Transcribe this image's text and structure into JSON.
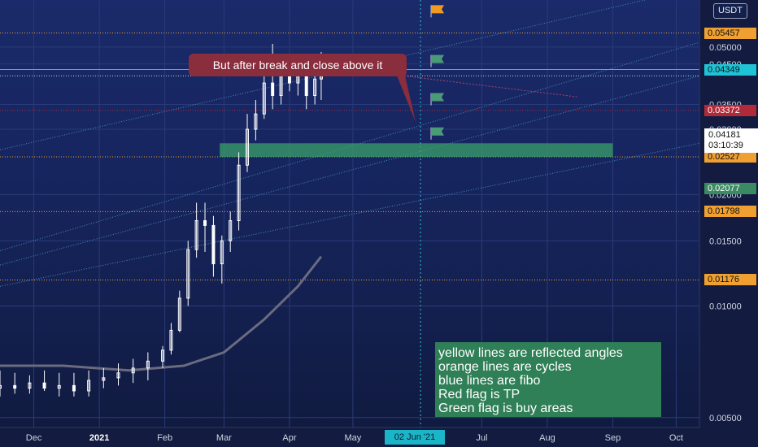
{
  "currency": "USDT",
  "callout_text": "But after break and close above it",
  "notes": [
    "yellow lines are reflected angles",
    "orange lines are cycles",
    "blue lines are fibo",
    "Red flag is TP",
    "Green flag is buy areas"
  ],
  "colors": {
    "candle_up": "#ffffff",
    "candle_down": "#ffffff",
    "moving_average": "#6b6b80",
    "fibo_line": "#4fa3c4",
    "resistance": "#b0406a",
    "buy_zone": "#3aa06a",
    "tp_flag": "#f09a20",
    "buy_flag": "#4a9a78",
    "cycle_line": "#2ec4d4"
  },
  "chart_data": {
    "type": "candlestick",
    "y_scale": "log",
    "ylim": [
      0.0047,
      0.065
    ],
    "xlim": [
      "2020-11-15",
      "2021-10-12"
    ],
    "x_ticks": [
      {
        "label": "Dec",
        "date": "2020-12-01"
      },
      {
        "label": "2021",
        "date": "2021-01-01",
        "bold": true
      },
      {
        "label": "Feb",
        "date": "2021-02-01"
      },
      {
        "label": "Mar",
        "date": "2021-03-01"
      },
      {
        "label": "Apr",
        "date": "2021-04-01"
      },
      {
        "label": "May",
        "date": "2021-05-01"
      },
      {
        "label": "Jul",
        "date": "2021-07-01"
      },
      {
        "label": "Aug",
        "date": "2021-08-01"
      },
      {
        "label": "Sep",
        "date": "2021-09-01"
      },
      {
        "label": "Oct",
        "date": "2021-10-01"
      }
    ],
    "y_ticks": [
      "0.05000",
      "0.04500",
      "0.03500",
      "0.03000",
      "0.02000",
      "0.01500",
      "0.01000",
      "0.00500"
    ],
    "price_levels": [
      {
        "value": 0.05457,
        "label": "0.05457",
        "color": "#f0a030",
        "text_color": "#111111",
        "line": "dotted"
      },
      {
        "value": 0.04349,
        "label": "0.04349",
        "color": "#1fc3d6",
        "text_color": "#111111",
        "line": "solid"
      },
      {
        "value": 0.03372,
        "label": "0.03372",
        "color": "#b02a3a",
        "text_color": "#ffffff",
        "line": "dotted"
      },
      {
        "value": 0.02527,
        "label": "0.02527",
        "color": "#f0a030",
        "text_color": "#111111",
        "line": "dotted"
      },
      {
        "value": 0.02077,
        "label": "0.02077",
        "color": "#3a8a62",
        "text_color": "#ffffff",
        "line": "none"
      },
      {
        "value": 0.01798,
        "label": "0.01798",
        "color": "#f0a030",
        "text_color": "#111111",
        "line": "dotted"
      },
      {
        "value": 0.01176,
        "label": "0.01176",
        "color": "#f0a030",
        "text_color": "#111111",
        "line": "dotted"
      }
    ],
    "current_price": {
      "value": 0.04181,
      "label": "0.04181",
      "countdown": "03:10:39"
    },
    "cycle_date": {
      "date": "2021-06-02",
      "label": "02 Jun '21"
    },
    "buy_zone": {
      "date_start": "2021-02-27",
      "date_end": "2021-09-01",
      "low": 0.02527,
      "high": 0.0275
    },
    "moving_average": [
      {
        "date": "2020-11-15",
        "value": 0.0069
      },
      {
        "date": "2020-12-15",
        "value": 0.0069
      },
      {
        "date": "2021-01-15",
        "value": 0.0067
      },
      {
        "date": "2021-02-10",
        "value": 0.0069
      },
      {
        "date": "2021-03-01",
        "value": 0.0075
      },
      {
        "date": "2021-03-20",
        "value": 0.0092
      },
      {
        "date": "2021-04-05",
        "value": 0.0113
      },
      {
        "date": "2021-04-16",
        "value": 0.0136
      }
    ],
    "fibo_lines": [
      {
        "from": {
          "date": "2020-11-15",
          "value": 0.0264
        },
        "to": {
          "date": "2021-10-12",
          "value": 0.0725
        }
      },
      {
        "from": {
          "date": "2020-11-15",
          "value": 0.0141
        },
        "to": {
          "date": "2021-10-12",
          "value": 0.0515
        }
      },
      {
        "from": {
          "date": "2020-11-15",
          "value": 0.0129
        },
        "to": {
          "date": "2021-10-12",
          "value": 0.0418
        }
      },
      {
        "from": {
          "date": "2020-11-15",
          "value": 0.0113
        },
        "to": {
          "date": "2021-10-12",
          "value": 0.0275
        }
      }
    ],
    "resistance_line": {
      "from": {
        "date": "2021-03-10",
        "value": 0.0472
      },
      "to": {
        "date": "2021-08-15",
        "value": 0.0367
      }
    },
    "flags": [
      {
        "date": "2021-06-07",
        "value": 0.062,
        "kind": "tp"
      },
      {
        "date": "2021-06-07",
        "value": 0.0455,
        "kind": "buy"
      },
      {
        "date": "2021-06-07",
        "value": 0.0359,
        "kind": "buy"
      },
      {
        "date": "2021-06-07",
        "value": 0.029,
        "kind": "buy"
      }
    ],
    "candles_sampled": [
      {
        "date": "2020-11-15",
        "open": 0.006,
        "high": 0.0067,
        "low": 0.0057,
        "close": 0.0061
      },
      {
        "date": "2020-11-22",
        "open": 0.0061,
        "high": 0.0066,
        "low": 0.0058,
        "close": 0.006
      },
      {
        "date": "2020-11-29",
        "open": 0.006,
        "high": 0.0065,
        "low": 0.0058,
        "close": 0.0062
      },
      {
        "date": "2020-12-06",
        "open": 0.0062,
        "high": 0.0067,
        "low": 0.0059,
        "close": 0.006
      },
      {
        "date": "2020-12-13",
        "open": 0.006,
        "high": 0.0066,
        "low": 0.0057,
        "close": 0.0061
      },
      {
        "date": "2020-12-20",
        "open": 0.0061,
        "high": 0.0066,
        "low": 0.0057,
        "close": 0.0059
      },
      {
        "date": "2020-12-27",
        "open": 0.0059,
        "high": 0.0067,
        "low": 0.0057,
        "close": 0.0063
      },
      {
        "date": "2021-01-03",
        "open": 0.0063,
        "high": 0.0068,
        "low": 0.006,
        "close": 0.0064
      },
      {
        "date": "2021-01-10",
        "open": 0.0064,
        "high": 0.007,
        "low": 0.0061,
        "close": 0.0066
      },
      {
        "date": "2021-01-17",
        "open": 0.0066,
        "high": 0.0072,
        "low": 0.0062,
        "close": 0.0068
      },
      {
        "date": "2021-01-24",
        "open": 0.0068,
        "high": 0.0075,
        "low": 0.0063,
        "close": 0.0071
      },
      {
        "date": "2021-01-31",
        "open": 0.0071,
        "high": 0.0078,
        "low": 0.0068,
        "close": 0.0076
      },
      {
        "date": "2021-02-04",
        "open": 0.0076,
        "high": 0.009,
        "low": 0.0074,
        "close": 0.0086
      },
      {
        "date": "2021-02-08",
        "open": 0.0086,
        "high": 0.011,
        "low": 0.0085,
        "close": 0.0105
      },
      {
        "date": "2021-02-12",
        "open": 0.0105,
        "high": 0.015,
        "low": 0.01,
        "close": 0.0142
      },
      {
        "date": "2021-02-16",
        "open": 0.0142,
        "high": 0.019,
        "low": 0.0135,
        "close": 0.017
      },
      {
        "date": "2021-02-20",
        "open": 0.017,
        "high": 0.019,
        "low": 0.014,
        "close": 0.0165
      },
      {
        "date": "2021-02-24",
        "open": 0.0165,
        "high": 0.0175,
        "low": 0.012,
        "close": 0.013
      },
      {
        "date": "2021-02-28",
        "open": 0.013,
        "high": 0.0155,
        "low": 0.0115,
        "close": 0.015
      },
      {
        "date": "2021-03-04",
        "open": 0.015,
        "high": 0.018,
        "low": 0.014,
        "close": 0.017
      },
      {
        "date": "2021-03-08",
        "open": 0.017,
        "high": 0.026,
        "low": 0.016,
        "close": 0.024
      },
      {
        "date": "2021-03-12",
        "open": 0.024,
        "high": 0.033,
        "low": 0.023,
        "close": 0.03
      },
      {
        "date": "2021-03-16",
        "open": 0.03,
        "high": 0.036,
        "low": 0.028,
        "close": 0.033
      },
      {
        "date": "2021-03-20",
        "open": 0.033,
        "high": 0.042,
        "low": 0.032,
        "close": 0.04
      },
      {
        "date": "2021-03-24",
        "open": 0.04,
        "high": 0.051,
        "low": 0.034,
        "close": 0.037
      },
      {
        "date": "2021-03-28",
        "open": 0.037,
        "high": 0.044,
        "low": 0.035,
        "close": 0.042
      },
      {
        "date": "2021-04-01",
        "open": 0.042,
        "high": 0.047,
        "low": 0.038,
        "close": 0.04
      },
      {
        "date": "2021-04-05",
        "open": 0.04,
        "high": 0.048,
        "low": 0.037,
        "close": 0.042
      },
      {
        "date": "2021-04-09",
        "open": 0.042,
        "high": 0.045,
        "low": 0.034,
        "close": 0.037
      },
      {
        "date": "2021-04-13",
        "open": 0.037,
        "high": 0.044,
        "low": 0.035,
        "close": 0.041
      },
      {
        "date": "2021-04-16",
        "open": 0.041,
        "high": 0.0485,
        "low": 0.036,
        "close": 0.0418
      }
    ]
  }
}
